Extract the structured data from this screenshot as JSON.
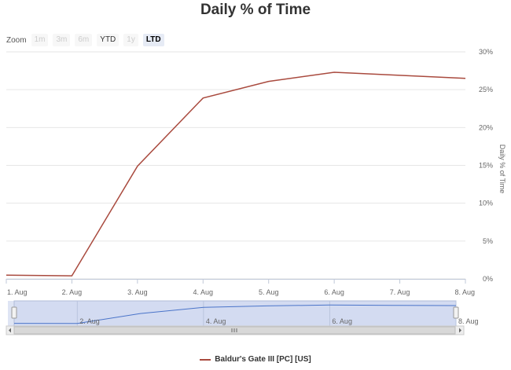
{
  "title": "Daily % of Time",
  "zoom": {
    "label": "Zoom",
    "buttons": [
      {
        "label": "1m",
        "state": "disabled"
      },
      {
        "label": "3m",
        "state": "disabled"
      },
      {
        "label": "6m",
        "state": "disabled"
      },
      {
        "label": "YTD",
        "state": "enabled"
      },
      {
        "label": "1y",
        "state": "disabled"
      },
      {
        "label": "LTD",
        "state": "selected"
      }
    ]
  },
  "colors": {
    "series": "#a94a3e",
    "navigator_fill": "#c9d4ee",
    "navigator_line": "#4a74c9",
    "grid": "#e6e6e6"
  },
  "chart_data": {
    "type": "line",
    "title": "Daily % of Time",
    "ylabel": "Daily % of Time",
    "x": [
      "1. Aug",
      "2. Aug",
      "3. Aug",
      "4. Aug",
      "5. Aug",
      "6. Aug",
      "7. Aug",
      "8. Aug"
    ],
    "series": [
      {
        "name": "Baldur's Gate III [PC] [US]",
        "values": [
          0.5,
          0.4,
          14.9,
          23.9,
          26.1,
          27.3,
          26.9,
          26.5
        ]
      }
    ],
    "y_ticks": [
      "0%",
      "5%",
      "10%",
      "15%",
      "20%",
      "25%",
      "30%"
    ],
    "ylim": [
      0,
      30
    ],
    "grid": true,
    "legend": "bottom-center",
    "navigator_ticks": [
      "2. Aug",
      "4. Aug",
      "6. Aug",
      "8. Aug"
    ]
  }
}
